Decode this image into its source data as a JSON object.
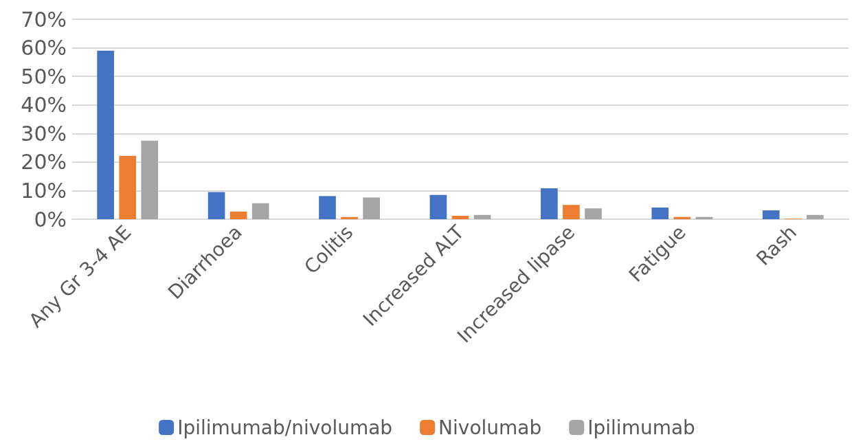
{
  "chart_data": {
    "type": "bar",
    "categories": [
      "Any Gr 3-4 AE",
      "Diarrhoea",
      "Colitis",
      "Increased ALT",
      "Increased lipase",
      "Fatigue",
      "Rash"
    ],
    "series": [
      {
        "name": "Ipilimumab/nivolumab",
        "color": "#4472c4",
        "values": [
          59.0,
          9.5,
          8.1,
          8.5,
          10.8,
          4.1,
          3.1
        ]
      },
      {
        "name": "Nivolumab",
        "color": "#ed7d31",
        "values": [
          22.2,
          2.7,
          0.8,
          1.2,
          5.0,
          0.8,
          0.2
        ]
      },
      {
        "name": "Ipilimumab",
        "color": "#a5a5a5",
        "values": [
          27.5,
          5.6,
          7.6,
          1.5,
          3.8,
          0.8,
          1.5
        ]
      }
    ],
    "ylim": [
      0,
      70
    ],
    "yticks": [
      {
        "value": 0,
        "label": "0%"
      },
      {
        "value": 10,
        "label": "10%"
      },
      {
        "value": 20,
        "label": "20%"
      },
      {
        "value": 30,
        "label": "30%"
      },
      {
        "value": 40,
        "label": "40%"
      },
      {
        "value": 50,
        "label": "50%"
      },
      {
        "value": 60,
        "label": "60%"
      },
      {
        "value": 70,
        "label": "70%"
      }
    ],
    "grid": "y",
    "legend": "bottom"
  }
}
